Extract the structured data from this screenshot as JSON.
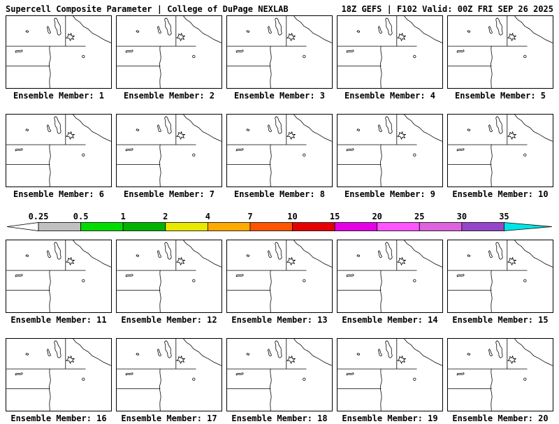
{
  "header": {
    "title_left": "Supercell Composite Parameter | College of DuPage NEXLAB",
    "title_right": "18Z GEFS | F102 Valid: 00Z FRI SEP 26 2025"
  },
  "panels": [
    {
      "label": "Ensemble Member: 1"
    },
    {
      "label": "Ensemble Member: 2"
    },
    {
      "label": "Ensemble Member: 3"
    },
    {
      "label": "Ensemble Member: 4"
    },
    {
      "label": "Ensemble Member: 5"
    },
    {
      "label": "Ensemble Member: 6"
    },
    {
      "label": "Ensemble Member: 7"
    },
    {
      "label": "Ensemble Member: 8"
    },
    {
      "label": "Ensemble Member: 9"
    },
    {
      "label": "Ensemble Member: 10"
    },
    {
      "label": "Ensemble Member: 11"
    },
    {
      "label": "Ensemble Member: 12"
    },
    {
      "label": "Ensemble Member: 13"
    },
    {
      "label": "Ensemble Member: 14"
    },
    {
      "label": "Ensemble Member: 15"
    },
    {
      "label": "Ensemble Member: 16"
    },
    {
      "label": "Ensemble Member: 17"
    },
    {
      "label": "Ensemble Member: 18"
    },
    {
      "label": "Ensemble Member: 19"
    },
    {
      "label": "Ensemble Member: 20"
    }
  ],
  "colorbar": {
    "labels": [
      "0.25",
      "0.5",
      "1",
      "2",
      "4",
      "7",
      "10",
      "15",
      "20",
      "25",
      "30",
      "35"
    ],
    "colors": [
      "#ffffff",
      "#c0c0c0",
      "#00dc00",
      "#00b400",
      "#e8e800",
      "#ffaa00",
      "#ff5500",
      "#e60000",
      "#e600e6",
      "#ff55ff",
      "#dc64dc",
      "#9646c8",
      "#00e6e6"
    ],
    "outline_color": "#000000"
  }
}
